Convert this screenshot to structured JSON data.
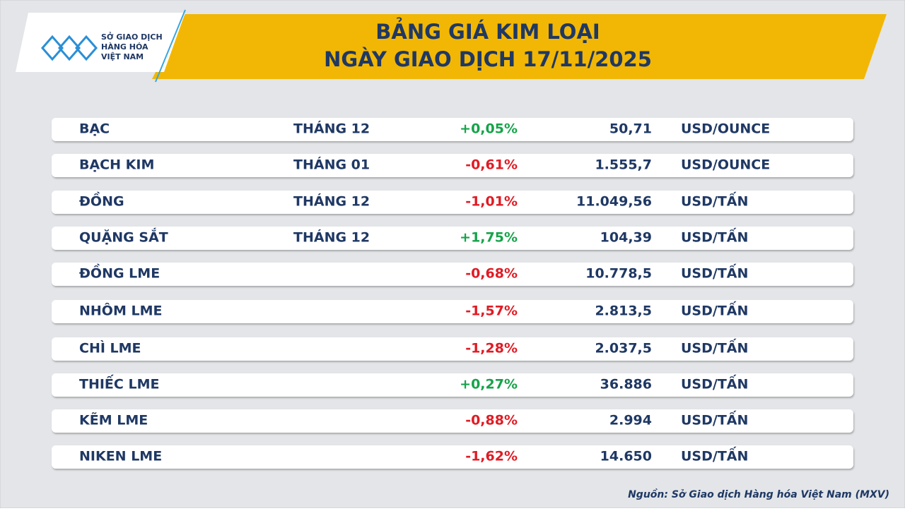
{
  "logo": {
    "line1": "SỞ GIAO DỊCH",
    "line2": "HÀNG HÓA",
    "line3": "VIỆT NAM"
  },
  "header": {
    "title_line1": "BẢNG GIÁ KIM LOẠI",
    "title_line2": "NGÀY GIAO DỊCH 17/11/2025"
  },
  "table": {
    "rows": [
      {
        "name": "BẠC",
        "month": "THÁNG 12",
        "change": "+0,05%",
        "price": "50,71",
        "unit": "USD/OUNCE"
      },
      {
        "name": "BẠCH KIM",
        "month": "THÁNG 01",
        "change": "-0,61%",
        "price": "1.555,7",
        "unit": "USD/OUNCE"
      },
      {
        "name": "ĐỒNG",
        "month": "THÁNG 12",
        "change": "-1,01%",
        "price": "11.049,56",
        "unit": "USD/TẤN"
      },
      {
        "name": "QUẶNG SẮT",
        "month": "THÁNG 12",
        "change": "+1,75%",
        "price": "104,39",
        "unit": "USD/TẤN"
      },
      {
        "name": "ĐỒNG LME",
        "change": "-0,68%",
        "price": "10.778,5",
        "unit": "USD/TẤN"
      },
      {
        "name": "NHÔM LME",
        "change": "-1,57%",
        "price": "2.813,5",
        "unit": "USD/TẤN"
      },
      {
        "name": "CHÌ LME",
        "change": "-1,28%",
        "price": "2.037,5",
        "unit": "USD/TẤN"
      },
      {
        "name": "THIẾC LME",
        "change": "+0,27%",
        "price": "36.886",
        "unit": "USD/TẤN"
      },
      {
        "name": "KẼM LME",
        "change": "-0,88%",
        "price": "2.994",
        "unit": "USD/TẤN"
      },
      {
        "name": "NIKEN LME",
        "change": "-1,62%",
        "price": "14.650",
        "unit": "USD/TẤN"
      }
    ]
  },
  "source": "Nguồn: Sở Giao dịch Hàng hóa Việt Nam (MXV)"
}
